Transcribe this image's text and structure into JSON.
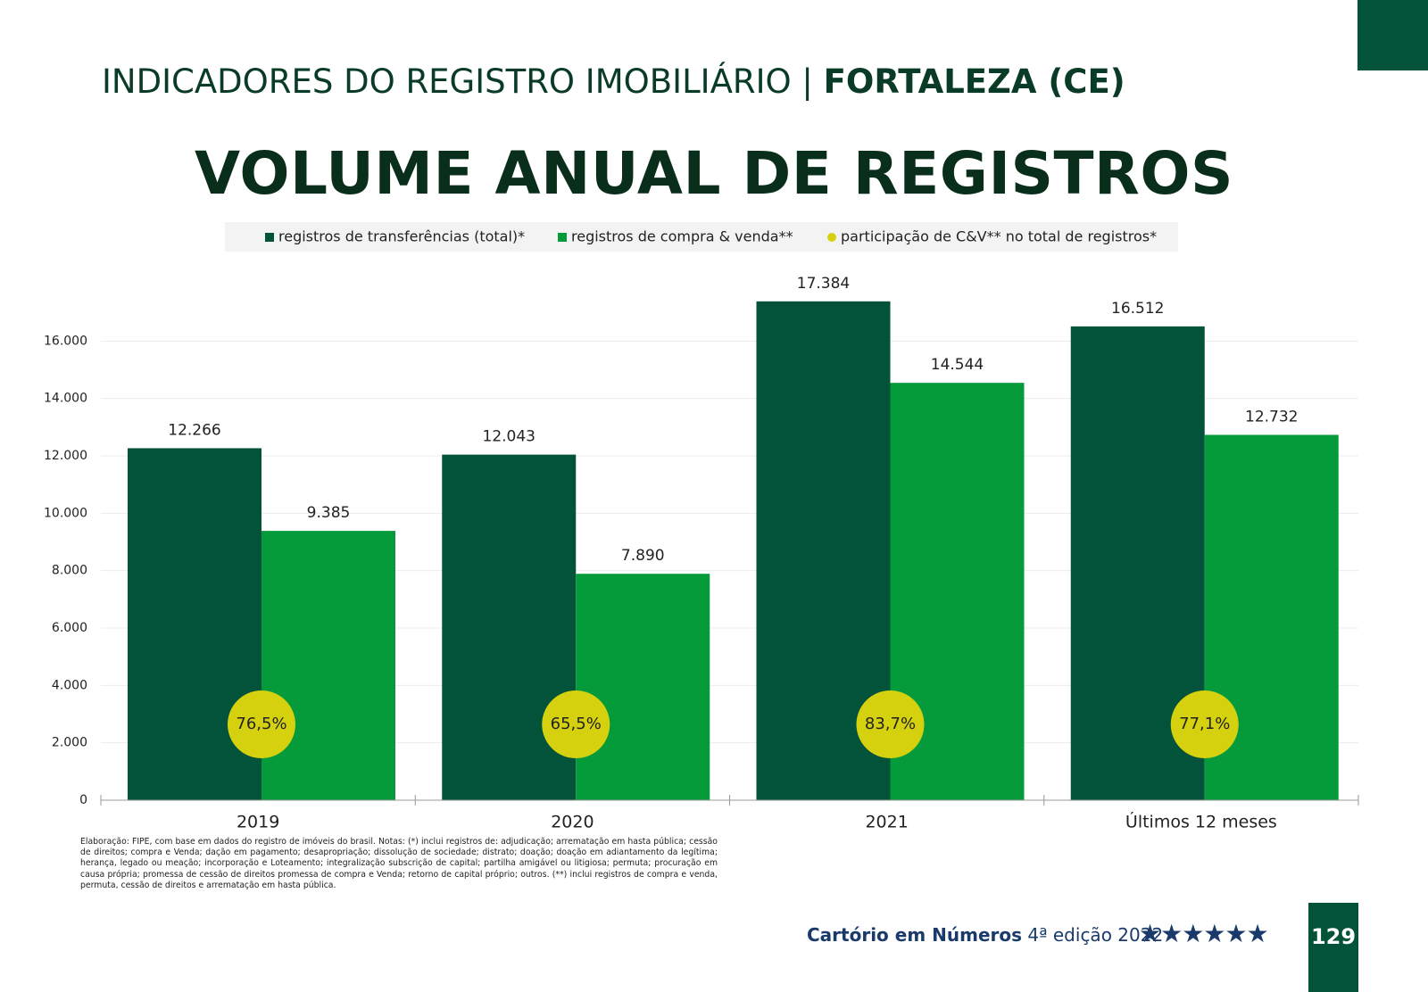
{
  "header": {
    "section": "INDICADORES DO REGISTRO IMOBILIÁRIO | ",
    "city": "FORTALEZA (CE)"
  },
  "chart_data": {
    "type": "bar",
    "title": "VOLUME ANUAL DE REGISTROS",
    "categories": [
      "2019",
      "2020",
      "2021",
      "Últimos 12 meses"
    ],
    "series": [
      {
        "name": "registros de transferências (total)*",
        "color": "#02533a",
        "values": [
          12266,
          12043,
          17384,
          16512
        ],
        "value_labels": [
          "12.266",
          "12.043",
          "17.384",
          "16.512"
        ]
      },
      {
        "name": "registros de compra & venda**",
        "color": "#059b3a",
        "values": [
          9385,
          7890,
          14544,
          12732
        ],
        "value_labels": [
          "9.385",
          "7.890",
          "14.544",
          "12.732"
        ]
      },
      {
        "name": "participação de C&V** no total de registros*",
        "color": "#d6d10e",
        "marker": "circle",
        "values": [
          76.5,
          65.5,
          83.7,
          77.1
        ],
        "value_labels": [
          "76,5%",
          "65,5%",
          "83,7%",
          "77,1%"
        ]
      }
    ],
    "ylim": [
      0,
      18000
    ],
    "yticks": [
      0,
      {
        "value": 2000,
        "label": "2.000"
      },
      {
        "value": 4000,
        "label": "4.000"
      },
      {
        "value": 6000,
        "label": "6.000"
      },
      {
        "value": 8000,
        "label": "8.000"
      },
      {
        "value": 10000,
        "label": "10.000"
      },
      {
        "value": 12000,
        "label": "12.000"
      },
      {
        "value": 14000,
        "label": "14.000"
      },
      {
        "value": 16000,
        "label": "16.000"
      }
    ],
    "grid": true
  },
  "note": "Elaboração: FIPE, com base em dados do registro de imóveis do brasil. Notas: (*) inclui registros de: adjudicação; arrematação em hasta pública; cessão de direitos; compra e Venda; dação em pagamento; desapropriação; dissolução de sociedade; distrato; doação; doação em adiantamento da legítima; herança, legado ou meação; incorporação e Loteamento; integralização subscrição de capital; partilha amigável ou litigiosa; permuta; procuração em causa própria; promessa de cessão de direitos promessa de compra e Venda; retorno de capital próprio; outros. (**) inclui registros de compra e venda, permuta, cessão de direitos e arrematação em hasta pública.",
  "footer": {
    "brand": "Cartório em Números",
    "edition": "4ª edição 2022",
    "page": "129"
  }
}
